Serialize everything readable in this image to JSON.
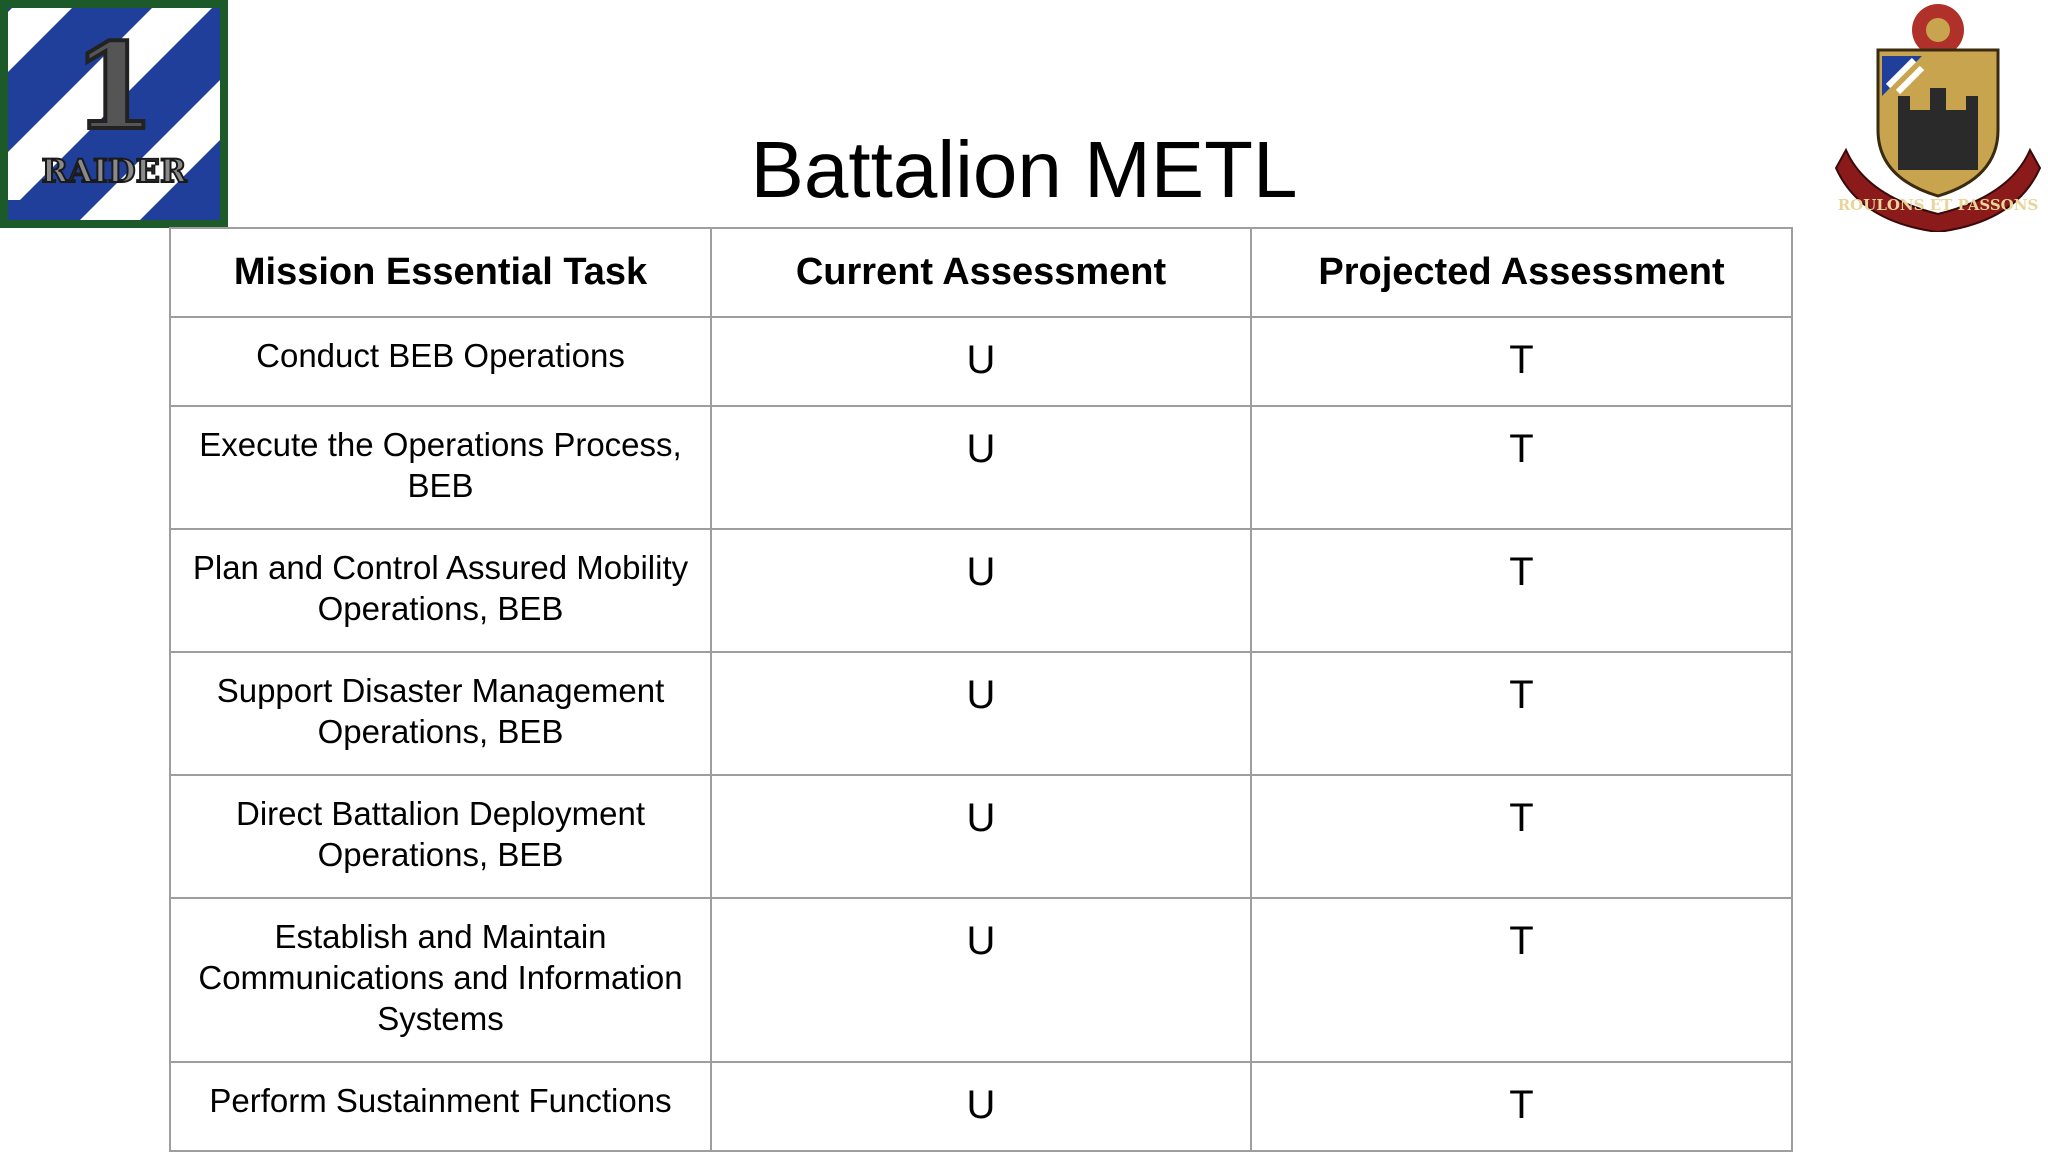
{
  "slide": {
    "title": "Battalion METL"
  },
  "logo_left": {
    "numeral": "1",
    "text": "RAIDER",
    "colors": {
      "blue": "#1f3f9a",
      "white": "#ffffff",
      "frame": "#1c5a2a",
      "numeral": "#555555"
    }
  },
  "logo_right": {
    "motto": "ROULONS ET PASSONS",
    "colors": {
      "shield": "#c9a44e",
      "scroll": "#8b1a1a",
      "red": "#b0302a",
      "text": "#e8d59a"
    }
  },
  "table": {
    "headers": [
      "Mission Essential Task",
      "Current Assessment",
      "Projected Assessment"
    ],
    "rows": [
      {
        "task": "Conduct BEB Operations",
        "current": "U",
        "projected": "T"
      },
      {
        "task": "Execute the Operations Process, BEB",
        "current": "U",
        "projected": "T"
      },
      {
        "task": "Plan and Control Assured Mobility Operations, BEB",
        "current": "U",
        "projected": "T"
      },
      {
        "task": "Support Disaster Management Operations, BEB",
        "current": "U",
        "projected": "T"
      },
      {
        "task": "Direct Battalion Deployment Operations, BEB",
        "current": "U",
        "projected": "T"
      },
      {
        "task": "Establish and Maintain Communications and Information Systems",
        "current": "U",
        "projected": "T"
      },
      {
        "task": "Perform Sustainment Functions",
        "current": "U",
        "projected": "T"
      }
    ]
  }
}
